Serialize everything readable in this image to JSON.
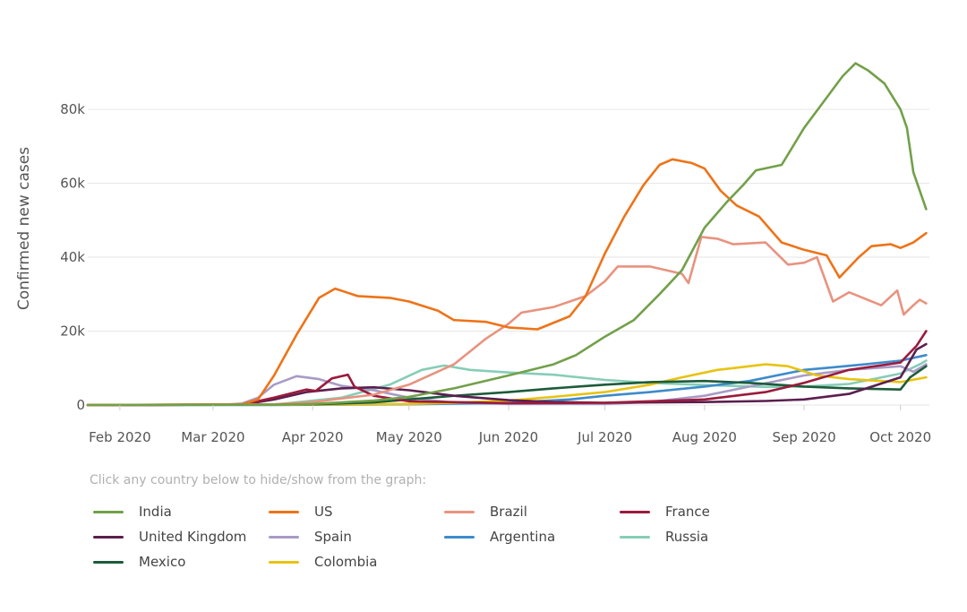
{
  "chart_data": {
    "type": "line",
    "title": "",
    "ylabel": "Confirmed new cases",
    "xlabel": "",
    "x_domain": [
      "2020-01-22",
      "2020-10-10"
    ],
    "ylim": [
      0,
      97000
    ],
    "y_ticks": [
      {
        "value": 0,
        "label": "0"
      },
      {
        "value": 20000,
        "label": "20k"
      },
      {
        "value": 40000,
        "label": "40k"
      },
      {
        "value": 60000,
        "label": "60k"
      },
      {
        "value": 80000,
        "label": "80k"
      }
    ],
    "x_ticks": [
      {
        "date": "2020-02-01",
        "label": "Feb 2020"
      },
      {
        "date": "2020-03-01",
        "label": "Mar 2020"
      },
      {
        "date": "2020-04-01",
        "label": "Apr 2020"
      },
      {
        "date": "2020-05-01",
        "label": "May 2020"
      },
      {
        "date": "2020-06-01",
        "label": "Jun 2020"
      },
      {
        "date": "2020-07-01",
        "label": "Jul 2020"
      },
      {
        "date": "2020-08-01",
        "label": "Aug 2020"
      },
      {
        "date": "2020-09-01",
        "label": "Sep 2020"
      },
      {
        "date": "2020-10-01",
        "label": "Oct 2020"
      }
    ],
    "series": [
      {
        "name": "Russia",
        "color": "#86cdb7",
        "points": [
          [
            "2020-01-22",
            0
          ],
          [
            "2020-03-20",
            100
          ],
          [
            "2020-04-10",
            2000
          ],
          [
            "2020-04-25",
            5500
          ],
          [
            "2020-05-05",
            9500
          ],
          [
            "2020-05-12",
            10700
          ],
          [
            "2020-05-20",
            9500
          ],
          [
            "2020-06-01",
            8800
          ],
          [
            "2020-06-15",
            8200
          ],
          [
            "2020-07-01",
            6800
          ],
          [
            "2020-07-15",
            6000
          ],
          [
            "2020-08-01",
            5400
          ],
          [
            "2020-08-20",
            4900
          ],
          [
            "2020-09-01",
            5000
          ],
          [
            "2020-09-15",
            5700
          ],
          [
            "2020-10-01",
            8500
          ],
          [
            "2020-10-07",
            11000
          ],
          [
            "2020-10-09",
            12000
          ]
        ]
      },
      {
        "name": "Spain",
        "color": "#a89bc6",
        "points": [
          [
            "2020-01-22",
            0
          ],
          [
            "2020-03-05",
            100
          ],
          [
            "2020-03-10",
            400
          ],
          [
            "2020-03-15",
            2000
          ],
          [
            "2020-03-20",
            5500
          ],
          [
            "2020-03-27",
            7800
          ],
          [
            "2020-04-03",
            7000
          ],
          [
            "2020-04-10",
            5200
          ],
          [
            "2020-04-20",
            4000
          ],
          [
            "2020-05-01",
            2000
          ],
          [
            "2020-05-15",
            600
          ],
          [
            "2020-06-01",
            300
          ],
          [
            "2020-07-01",
            300
          ],
          [
            "2020-07-15",
            800
          ],
          [
            "2020-08-01",
            2500
          ],
          [
            "2020-08-15",
            5000
          ],
          [
            "2020-09-01",
            8000
          ],
          [
            "2020-09-15",
            9500
          ],
          [
            "2020-10-01",
            10500
          ],
          [
            "2020-10-05",
            9000
          ],
          [
            "2020-10-09",
            11000
          ]
        ]
      },
      {
        "name": "Argentina",
        "color": "#3d8bcc",
        "points": [
          [
            "2020-01-22",
            0
          ],
          [
            "2020-03-20",
            0
          ],
          [
            "2020-05-01",
            200
          ],
          [
            "2020-06-01",
            600
          ],
          [
            "2020-06-20",
            1500
          ],
          [
            "2020-07-01",
            2500
          ],
          [
            "2020-07-15",
            3500
          ],
          [
            "2020-08-01",
            5000
          ],
          [
            "2020-08-15",
            6500
          ],
          [
            "2020-09-01",
            9500
          ],
          [
            "2020-09-10",
            10200
          ],
          [
            "2020-09-20",
            11000
          ],
          [
            "2020-10-01",
            12000
          ],
          [
            "2020-10-09",
            13500
          ]
        ]
      },
      {
        "name": "Colombia",
        "color": "#e8c312",
        "points": [
          [
            "2020-01-22",
            0
          ],
          [
            "2020-04-01",
            100
          ],
          [
            "2020-05-01",
            300
          ],
          [
            "2020-05-15",
            600
          ],
          [
            "2020-06-01",
            1200
          ],
          [
            "2020-06-15",
            2200
          ],
          [
            "2020-07-01",
            3500
          ],
          [
            "2020-07-15",
            5500
          ],
          [
            "2020-07-25",
            7500
          ],
          [
            "2020-08-05",
            9500
          ],
          [
            "2020-08-10",
            10000
          ],
          [
            "2020-08-20",
            11000
          ],
          [
            "2020-08-27",
            10500
          ],
          [
            "2020-09-05",
            8000
          ],
          [
            "2020-09-15",
            7000
          ],
          [
            "2020-10-01",
            6200
          ],
          [
            "2020-10-09",
            7500
          ]
        ]
      },
      {
        "name": "Mexico",
        "color": "#1d5b3a",
        "points": [
          [
            "2020-01-22",
            0
          ],
          [
            "2020-04-01",
            200
          ],
          [
            "2020-04-20",
            700
          ],
          [
            "2020-05-01",
            1500
          ],
          [
            "2020-05-15",
            2500
          ],
          [
            "2020-06-01",
            3500
          ],
          [
            "2020-06-15",
            4500
          ],
          [
            "2020-07-01",
            5500
          ],
          [
            "2020-07-15",
            6200
          ],
          [
            "2020-08-01",
            6500
          ],
          [
            "2020-08-15",
            6000
          ],
          [
            "2020-09-01",
            5000
          ],
          [
            "2020-09-15",
            4500
          ],
          [
            "2020-10-01",
            4200
          ],
          [
            "2020-10-04",
            7500
          ],
          [
            "2020-10-09",
            10500
          ]
        ]
      },
      {
        "name": "United Kingdom",
        "color": "#5a1f4e",
        "points": [
          [
            "2020-01-22",
            0
          ],
          [
            "2020-03-10",
            100
          ],
          [
            "2020-03-20",
            1500
          ],
          [
            "2020-03-30",
            3500
          ],
          [
            "2020-04-10",
            4500
          ],
          [
            "2020-04-20",
            4800
          ],
          [
            "2020-05-01",
            4000
          ],
          [
            "2020-05-15",
            2500
          ],
          [
            "2020-06-01",
            1300
          ],
          [
            "2020-06-15",
            800
          ],
          [
            "2020-07-01",
            600
          ],
          [
            "2020-08-01",
            800
          ],
          [
            "2020-08-20",
            1100
          ],
          [
            "2020-09-01",
            1500
          ],
          [
            "2020-09-15",
            3000
          ],
          [
            "2020-10-01",
            7500
          ],
          [
            "2020-10-06",
            15000
          ],
          [
            "2020-10-09",
            16500
          ]
        ]
      },
      {
        "name": "France",
        "color": "#9b1b3c",
        "points": [
          [
            "2020-01-22",
            0
          ],
          [
            "2020-03-10",
            100
          ],
          [
            "2020-03-20",
            2000
          ],
          [
            "2020-03-30",
            4200
          ],
          [
            "2020-04-02",
            3800
          ],
          [
            "2020-04-07",
            7200
          ],
          [
            "2020-04-12",
            8200
          ],
          [
            "2020-04-14",
            5000
          ],
          [
            "2020-04-20",
            2500
          ],
          [
            "2020-05-01",
            1000
          ],
          [
            "2020-06-01",
            500
          ],
          [
            "2020-07-01",
            600
          ],
          [
            "2020-08-01",
            1500
          ],
          [
            "2020-08-20",
            3500
          ],
          [
            "2020-09-01",
            6000
          ],
          [
            "2020-09-15",
            9500
          ],
          [
            "2020-10-01",
            11500
          ],
          [
            "2020-10-06",
            16000
          ],
          [
            "2020-10-09",
            20000
          ]
        ]
      },
      {
        "name": "Brazil",
        "color": "#e8937f",
        "points": [
          [
            "2020-01-22",
            0
          ],
          [
            "2020-03-20",
            200
          ],
          [
            "2020-04-01",
            800
          ],
          [
            "2020-04-20",
            2800
          ],
          [
            "2020-05-01",
            5500
          ],
          [
            "2020-05-15",
            11000
          ],
          [
            "2020-05-25",
            18000
          ],
          [
            "2020-06-01",
            22000
          ],
          [
            "2020-06-05",
            25000
          ],
          [
            "2020-06-15",
            26500
          ],
          [
            "2020-06-25",
            29500
          ],
          [
            "2020-07-01",
            33500
          ],
          [
            "2020-07-05",
            37500
          ],
          [
            "2020-07-15",
            37500
          ],
          [
            "2020-07-25",
            35500
          ],
          [
            "2020-07-27",
            33000
          ],
          [
            "2020-07-31",
            45500
          ],
          [
            "2020-08-05",
            45000
          ],
          [
            "2020-08-10",
            43500
          ],
          [
            "2020-08-20",
            44000
          ],
          [
            "2020-08-27",
            38000
          ],
          [
            "2020-09-01",
            38500
          ],
          [
            "2020-09-05",
            40000
          ],
          [
            "2020-09-10",
            28000
          ],
          [
            "2020-09-15",
            30500
          ],
          [
            "2020-09-25",
            27000
          ],
          [
            "2020-09-30",
            31000
          ],
          [
            "2020-10-02",
            24500
          ],
          [
            "2020-10-05",
            27000
          ],
          [
            "2020-10-07",
            28500
          ],
          [
            "2020-10-09",
            27500
          ]
        ]
      },
      {
        "name": "US",
        "color": "#ee7318",
        "points": [
          [
            "2020-01-22",
            0
          ],
          [
            "2020-03-10",
            200
          ],
          [
            "2020-03-15",
            1500
          ],
          [
            "2020-03-20",
            8000
          ],
          [
            "2020-03-27",
            19000
          ],
          [
            "2020-04-03",
            29000
          ],
          [
            "2020-04-08",
            31500
          ],
          [
            "2020-04-15",
            29500
          ],
          [
            "2020-04-25",
            29000
          ],
          [
            "2020-05-01",
            28000
          ],
          [
            "2020-05-10",
            25500
          ],
          [
            "2020-05-15",
            23000
          ],
          [
            "2020-05-25",
            22500
          ],
          [
            "2020-06-01",
            21000
          ],
          [
            "2020-06-10",
            20500
          ],
          [
            "2020-06-20",
            24000
          ],
          [
            "2020-06-25",
            29500
          ],
          [
            "2020-07-01",
            41000
          ],
          [
            "2020-07-07",
            51000
          ],
          [
            "2020-07-13",
            59500
          ],
          [
            "2020-07-18",
            65000
          ],
          [
            "2020-07-22",
            66500
          ],
          [
            "2020-07-28",
            65500
          ],
          [
            "2020-08-01",
            64000
          ],
          [
            "2020-08-06",
            58000
          ],
          [
            "2020-08-11",
            54000
          ],
          [
            "2020-08-18",
            51000
          ],
          [
            "2020-08-25",
            44000
          ],
          [
            "2020-09-01",
            42000
          ],
          [
            "2020-09-08",
            40500
          ],
          [
            "2020-09-12",
            34500
          ],
          [
            "2020-09-18",
            40000
          ],
          [
            "2020-09-22",
            43000
          ],
          [
            "2020-09-28",
            43500
          ],
          [
            "2020-10-01",
            42500
          ],
          [
            "2020-10-05",
            44000
          ],
          [
            "2020-10-09",
            46500
          ]
        ]
      },
      {
        "name": "India",
        "color": "#72a04a",
        "points": [
          [
            "2020-01-22",
            0
          ],
          [
            "2020-03-20",
            100
          ],
          [
            "2020-04-01",
            300
          ],
          [
            "2020-04-20",
            1200
          ],
          [
            "2020-05-01",
            2200
          ],
          [
            "2020-05-15",
            4500
          ],
          [
            "2020-06-01",
            8000
          ],
          [
            "2020-06-15",
            11000
          ],
          [
            "2020-06-22",
            13500
          ],
          [
            "2020-07-01",
            18500
          ],
          [
            "2020-07-10",
            23000
          ],
          [
            "2020-07-18",
            30000
          ],
          [
            "2020-07-25",
            36500
          ],
          [
            "2020-08-01",
            48000
          ],
          [
            "2020-08-08",
            55000
          ],
          [
            "2020-08-13",
            59500
          ],
          [
            "2020-08-17",
            63500
          ],
          [
            "2020-08-25",
            65000
          ],
          [
            "2020-09-01",
            75000
          ],
          [
            "2020-09-07",
            82000
          ],
          [
            "2020-09-13",
            89000
          ],
          [
            "2020-09-17",
            92500
          ],
          [
            "2020-09-21",
            90500
          ],
          [
            "2020-09-26",
            87000
          ],
          [
            "2020-10-01",
            80000
          ],
          [
            "2020-10-03",
            75000
          ],
          [
            "2020-10-05",
            63000
          ],
          [
            "2020-10-09",
            53000
          ]
        ]
      }
    ]
  },
  "legend": {
    "hint": "Click any country below to hide/show from the graph:",
    "items": [
      {
        "label": "India",
        "color": "#72a04a"
      },
      {
        "label": "US",
        "color": "#ee7318"
      },
      {
        "label": "Brazil",
        "color": "#e8937f"
      },
      {
        "label": "France",
        "color": "#9b1b3c"
      },
      {
        "label": "United Kingdom",
        "color": "#5a1f4e"
      },
      {
        "label": "Spain",
        "color": "#a89bc6"
      },
      {
        "label": "Argentina",
        "color": "#3d8bcc"
      },
      {
        "label": "Russia",
        "color": "#86cdb7"
      },
      {
        "label": "Mexico",
        "color": "#1d5b3a"
      },
      {
        "label": "Colombia",
        "color": "#e8c312"
      }
    ]
  }
}
